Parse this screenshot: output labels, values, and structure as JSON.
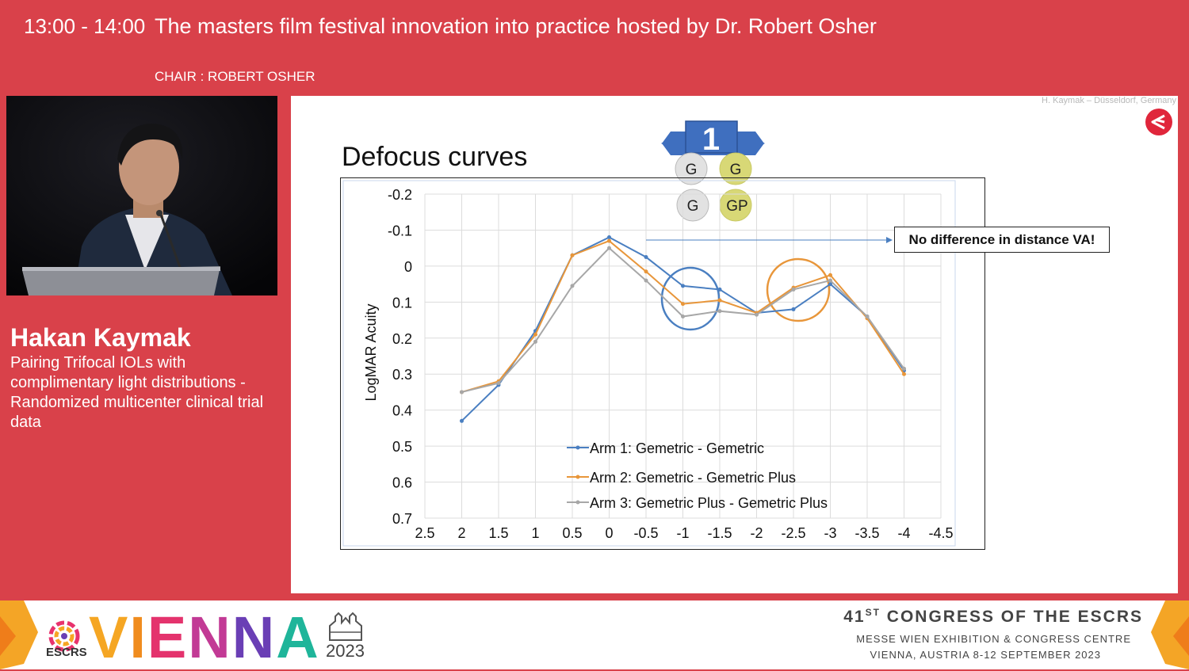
{
  "header": {
    "time": "13:00 - 14:00",
    "title": "The masters film festival innovation into practice hosted by Dr. Robert Osher",
    "chair": "CHAIR : ROBERT OSHER"
  },
  "speaker": {
    "name": "Hakan Kaymak",
    "talk_title": "Pairing Trifocal IOLs with complimentary light distributions - Randomized multicenter clinical trial data"
  },
  "slide": {
    "credit": "H. Kaymak – Düsseldorf, Germany",
    "heading": "Defocus curves",
    "badge": {
      "number": "1",
      "chips": [
        "G",
        "G",
        "G",
        "GP"
      ]
    },
    "callout": "No difference in distance VA!",
    "colors": {
      "arm1": "#4a7fc1",
      "arm2": "#e8963a",
      "arm3": "#a7a7a7",
      "badge": "#3f6fbf"
    }
  },
  "chart_data": {
    "type": "line",
    "title": "Defocus curves",
    "xlabel": "",
    "ylabel": "LogMAR Acuity",
    "x": [
      2,
      1.5,
      1,
      0.5,
      0,
      -0.5,
      -1,
      -1.5,
      -2,
      -2.5,
      -3,
      -3.5,
      -4
    ],
    "x_ticks": [
      "2.5",
      "2",
      "1.5",
      "1",
      "0.5",
      "0",
      "-0.5",
      "-1",
      "-1.5",
      "-2",
      "-2.5",
      "-3",
      "-3.5",
      "-4",
      "-4.5"
    ],
    "y_ticks": [
      "-0.2",
      "-0.1",
      "0",
      "0.1",
      "0.2",
      "0.3",
      "0.4",
      "0.5",
      "0.6",
      "0.7"
    ],
    "xlim": [
      2.5,
      -4.5
    ],
    "ylim": [
      -0.2,
      0.7
    ],
    "y_inverted": true,
    "grid": true,
    "series": [
      {
        "name": "Arm 1: Gemetric - Gemetric",
        "values": [
          0.43,
          0.33,
          0.18,
          -0.03,
          -0.08,
          -0.025,
          0.055,
          0.065,
          0.13,
          0.12,
          0.05,
          0.14,
          0.29
        ]
      },
      {
        "name": "Arm 2: Gemetric - Gemetric Plus",
        "values": [
          0.35,
          0.32,
          0.19,
          -0.03,
          -0.07,
          0.015,
          0.105,
          0.095,
          0.13,
          0.06,
          0.025,
          0.145,
          0.3
        ]
      },
      {
        "name": "Arm 3: Gemetric Plus - Gemetric Plus",
        "values": [
          0.35,
          0.325,
          0.21,
          0.055,
          -0.05,
          0.04,
          0.14,
          0.125,
          0.135,
          0.065,
          0.04,
          0.14,
          0.285
        ]
      }
    ]
  },
  "footer": {
    "escrs": "ESCRS",
    "city": "VIENNA",
    "year": "2023",
    "congress_num": "41",
    "congress_sup": "ST",
    "congress_rest": " CONGRESS OF THE ESCRS",
    "venue": "MESSE WIEN EXHIBITION & CONGRESS CENTRE",
    "dates": "VIENNA, AUSTRIA 8-12 SEPTEMBER 2023"
  }
}
